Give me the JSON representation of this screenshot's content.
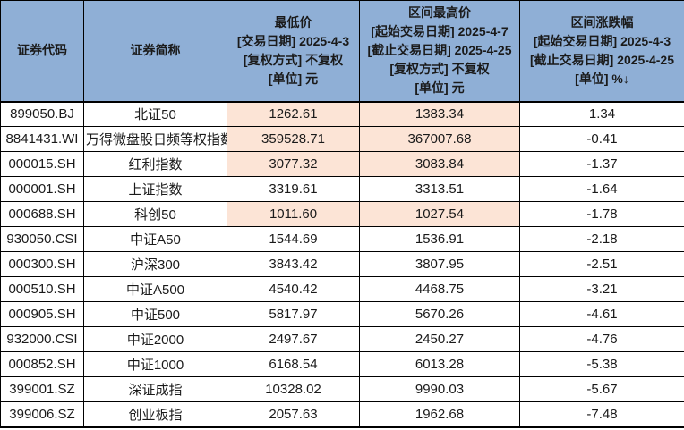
{
  "header": {
    "col_code": "证券代码",
    "col_name": "证券简称",
    "col_low_lines": [
      "最低价",
      "[交易日期] 2025-4-3",
      "[复权方式] 不复权",
      "[单位] 元"
    ],
    "col_high_lines": [
      "区间最高价",
      "[起始交易日期] 2025-4-7",
      "[截止交易日期] 2025-4-25",
      "[复权方式] 不复权",
      "[单位] 元"
    ],
    "col_chg_lines": [
      "区间涨跌幅",
      "[起始交易日期] 2025-4-3",
      "[截止交易日期] 2025-4-25",
      "[单位] %"
    ],
    "sort_arrow": "↓"
  },
  "rows": [
    {
      "code": "899050.BJ",
      "name": "北证50",
      "low": "1262.61",
      "high": "1383.34",
      "chg": "1.34",
      "highlight": true
    },
    {
      "code": "8841431.WI",
      "name": "万得微盘股日频等权指数",
      "low": "359528.71",
      "high": "367007.68",
      "chg": "-0.41",
      "highlight": true
    },
    {
      "code": "000015.SH",
      "name": "红利指数",
      "low": "3077.32",
      "high": "3083.84",
      "chg": "-1.37",
      "highlight": true
    },
    {
      "code": "000001.SH",
      "name": "上证指数",
      "low": "3319.61",
      "high": "3313.51",
      "chg": "-1.64",
      "highlight": false
    },
    {
      "code": "000688.SH",
      "name": "科创50",
      "low": "1011.60",
      "high": "1027.54",
      "chg": "-1.78",
      "highlight": true
    },
    {
      "code": "930050.CSI",
      "name": "中证A50",
      "low": "1544.69",
      "high": "1536.91",
      "chg": "-2.18",
      "highlight": false
    },
    {
      "code": "000300.SH",
      "name": "沪深300",
      "low": "3843.42",
      "high": "3807.95",
      "chg": "-2.51",
      "highlight": false
    },
    {
      "code": "000510.SH",
      "name": "中证A500",
      "low": "4540.42",
      "high": "4468.75",
      "chg": "-3.21",
      "highlight": false
    },
    {
      "code": "000905.SH",
      "name": "中证500",
      "low": "5817.97",
      "high": "5670.26",
      "chg": "-4.61",
      "highlight": false
    },
    {
      "code": "932000.CSI",
      "name": "中证2000",
      "low": "2497.67",
      "high": "2450.27",
      "chg": "-4.76",
      "highlight": false
    },
    {
      "code": "000852.SH",
      "name": "中证1000",
      "low": "6168.54",
      "high": "6013.28",
      "chg": "-5.38",
      "highlight": false
    },
    {
      "code": "399001.SZ",
      "name": "深证成指",
      "low": "10328.02",
      "high": "9990.03",
      "chg": "-5.67",
      "highlight": false
    },
    {
      "code": "399006.SZ",
      "name": "创业板指",
      "low": "2057.63",
      "high": "1962.68",
      "chg": "-7.48",
      "highlight": false
    }
  ],
  "colors": {
    "header_bg": "#8FAFD6",
    "highlight_bg": "#FCE4D6",
    "border": "#000000",
    "text": "#1A1A1A",
    "row_bg": "#FFFFFF"
  }
}
